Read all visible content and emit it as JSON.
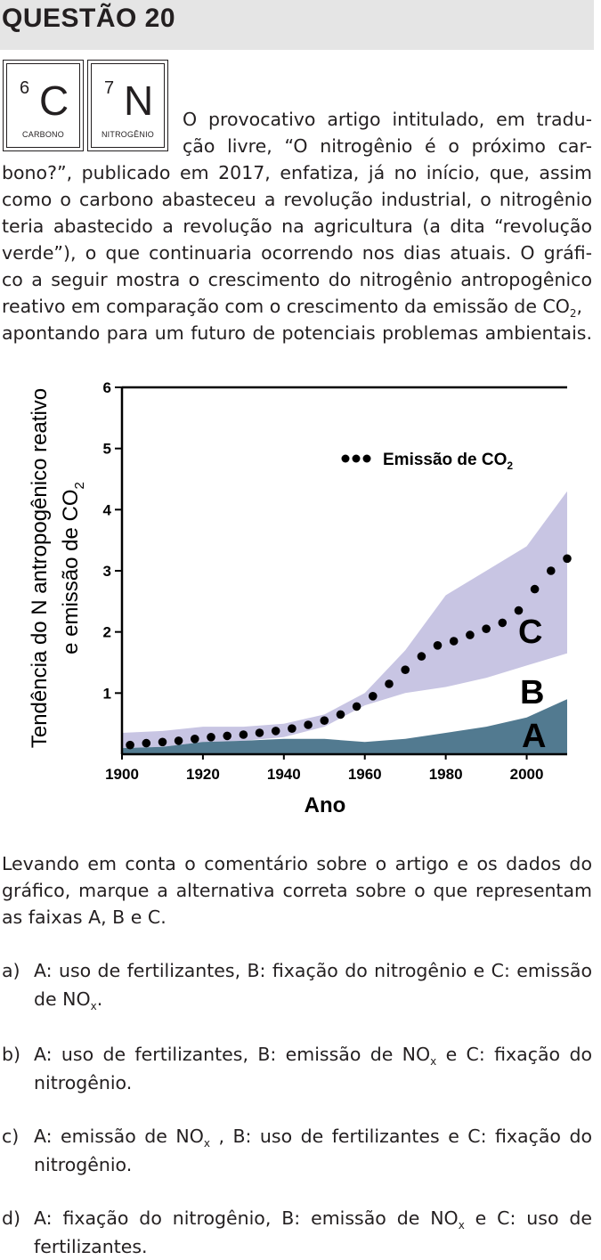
{
  "header": {
    "title": "QUESTÃO 20"
  },
  "elements": [
    {
      "number": "6",
      "symbol": "C",
      "name": "CARBONO"
    },
    {
      "number": "7",
      "symbol": "N",
      "name": "NITROGÊNIO"
    }
  ],
  "intro_lines": [
    "O provocativo artigo intitulado, em tradu-",
    "ção livre, “O nitrogênio é o próximo car-",
    "bono?”, publicado em 2017, enfatiza, já no início, que, assim",
    "como o carbono abasteceu a revolução industrial, o nitrogênio",
    "teria abastecido a revolução na agricultura (a dita “revolução",
    "verde”), o que continuaria ocorrendo nos dias atuais. O gráfi-",
    "co a seguir mostra o crescimento do nitrogênio antropogênico",
    "reativo em comparação com o crescimento da emissão de CO",
    "apontando para um futuro de potenciais problemas ambientais."
  ],
  "intro_co2_sub": "2",
  "intro_co2_tail": ",",
  "question_lines": [
    "Levando em conta o comentário sobre o artigo e os dados do",
    "gráfico, marque a alternativa correta sobre o que representam",
    "as faixas A, B e C."
  ],
  "options": [
    {
      "letter": "a)",
      "line1": "A: uso de fertilizantes, B: fixação do nitrogênio e C: emissão",
      "line2_pre": "de NO",
      "line2_sub": "x",
      "line2_post": "."
    },
    {
      "letter": "b)",
      "line1_pre": "A: uso de fertilizantes, B: emissão de NO",
      "line1_sub": "x",
      "line1_post": " e C: fixação do",
      "line2": "nitrogênio."
    },
    {
      "letter": "c)",
      "line1_pre": "A: emissão de NO",
      "line1_sub": "x",
      "line1_post": " , B: uso de fertilizantes e C: fixação do",
      "line2": "nitrogênio."
    },
    {
      "letter": "d)",
      "line1_pre": "A: fixação do nitrogênio, B: emissão de NO",
      "line1_sub": "x",
      "line1_post": " e C: uso de",
      "line2": "fertilizantes."
    }
  ],
  "chart_data": {
    "type": "area",
    "ylabel_line1": "Tendência do N antropogênico reativo",
    "ylabel_line2_pre": "e emissão de CO",
    "ylabel_line2_sub": "2",
    "xlabel": "Ano",
    "x_ticks": [
      "1900",
      "1920",
      "1940",
      "1960",
      "1980",
      "2000"
    ],
    "y_ticks": [
      "1",
      "2",
      "3",
      "4",
      "5",
      "6"
    ],
    "xlim": [
      1900,
      2010
    ],
    "ylim": [
      0,
      6
    ],
    "legend_pre": "Emissão de CO",
    "legend_sub": "2",
    "legend_position": "top-right",
    "band_labels": [
      "A",
      "B",
      "C"
    ],
    "colors": {
      "A": "#527a90",
      "C": "#c8c5e3",
      "dots": "#000000"
    },
    "x": [
      1900,
      1910,
      1920,
      1930,
      1940,
      1950,
      1960,
      1970,
      1980,
      1990,
      2000,
      2010
    ],
    "band_A_top": [
      0.1,
      0.12,
      0.2,
      0.22,
      0.25,
      0.25,
      0.2,
      0.25,
      0.35,
      0.45,
      0.6,
      0.9
    ],
    "band_B_top": [
      0.1,
      0.12,
      0.2,
      0.22,
      0.28,
      0.45,
      0.8,
      1.0,
      1.1,
      1.25,
      1.45,
      1.65
    ],
    "band_C_top": [
      0.35,
      0.38,
      0.45,
      0.45,
      0.5,
      0.65,
      1.0,
      1.7,
      2.6,
      3.0,
      3.4,
      4.3
    ],
    "co2_x": [
      1902,
      1906,
      1910,
      1914,
      1918,
      1922,
      1926,
      1930,
      1934,
      1938,
      1942,
      1946,
      1950,
      1954,
      1958,
      1962,
      1966,
      1970,
      1974,
      1978,
      1982,
      1986,
      1990,
      1994,
      1998,
      2002,
      2006,
      2010
    ],
    "co2_y": [
      0.15,
      0.18,
      0.2,
      0.22,
      0.25,
      0.28,
      0.3,
      0.32,
      0.35,
      0.38,
      0.42,
      0.48,
      0.55,
      0.65,
      0.78,
      0.95,
      1.15,
      1.38,
      1.6,
      1.78,
      1.85,
      1.95,
      2.05,
      2.15,
      2.35,
      2.7,
      3.0,
      3.2
    ]
  }
}
